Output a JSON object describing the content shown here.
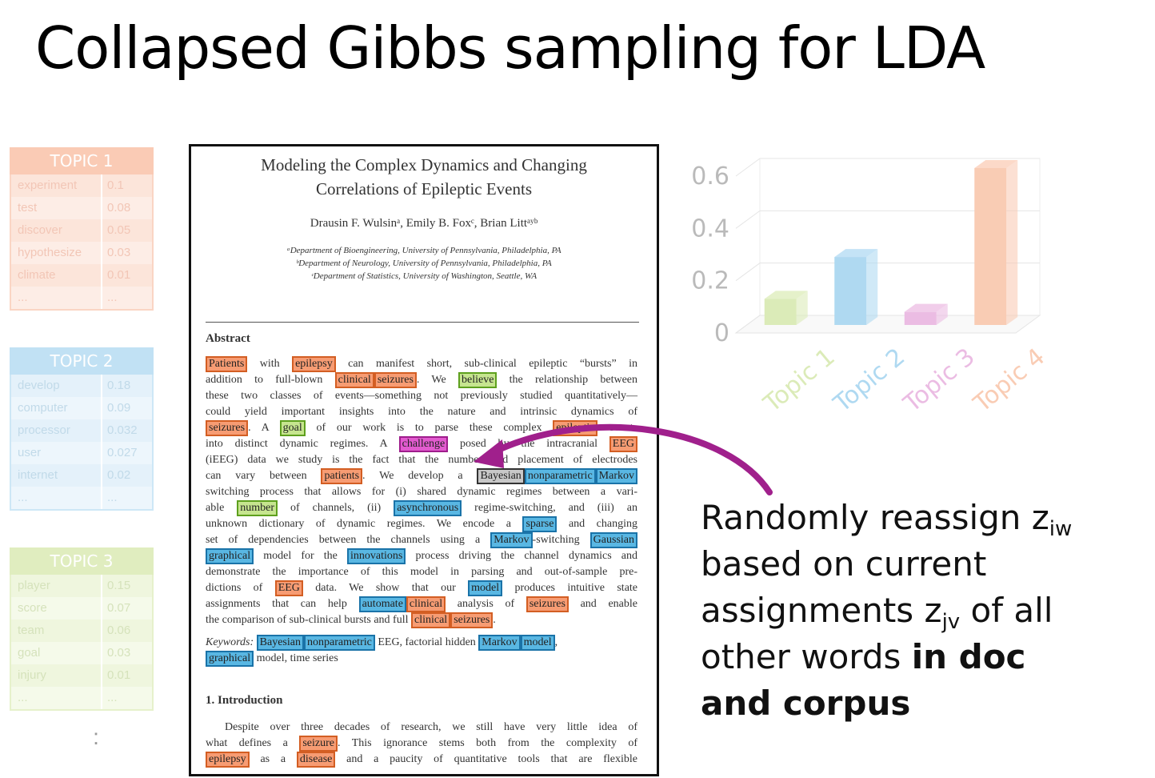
{
  "title": "Collapsed Gibbs sampling for LDA",
  "topics": [
    {
      "name": "TOPIC 1",
      "color": "#f7a27a",
      "rows": [
        {
          "word": "experiment",
          "prob": "0.1"
        },
        {
          "word": "test",
          "prob": "0.08"
        },
        {
          "word": "discover",
          "prob": "0.05"
        },
        {
          "word": "hypothesize",
          "prob": "0.03"
        },
        {
          "word": "climate",
          "prob": "0.01"
        },
        {
          "word": "...",
          "prob": "..."
        }
      ]
    },
    {
      "name": "TOPIC 2",
      "color": "#8fc9ec",
      "rows": [
        {
          "word": "develop",
          "prob": "0.18"
        },
        {
          "word": "computer",
          "prob": "0.09"
        },
        {
          "word": "processor",
          "prob": "0.032"
        },
        {
          "word": "user",
          "prob": "0.027"
        },
        {
          "word": "internet",
          "prob": "0.02"
        },
        {
          "word": "...",
          "prob": "..."
        }
      ]
    },
    {
      "name": "TOPIC 3",
      "color": "#c7df8b",
      "rows": [
        {
          "word": "player",
          "prob": "0.15"
        },
        {
          "word": "score",
          "prob": "0.07"
        },
        {
          "word": "team",
          "prob": "0.06"
        },
        {
          "word": "goal",
          "prob": "0.03"
        },
        {
          "word": "injury",
          "prob": "0.01"
        },
        {
          "word": "...",
          "prob": "..."
        }
      ]
    }
  ],
  "more_topics": ":",
  "paper": {
    "title_line1": "Modeling the Complex Dynamics and Changing",
    "title_line2": "Correlations of Epileptic Events",
    "authors": "Drausin F. Wulsinᵃ, Emily B. Foxᶜ, Brian Littᵃʸᵇ",
    "affiliations": [
      "ᵃDepartment of Bioengineering, University of Pennsylvania, Philadelphia, PA",
      "ᵇDepartment of Neurology, University of Pennsylvania, Philadelphia, PA",
      "ᶜDepartment of Statistics, University of Washington, Seattle, WA"
    ],
    "abstract_heading": "Abstract",
    "abstract_lines": [
      [
        {
          "t": "Patients",
          "h": "o"
        },
        {
          "t": " with "
        },
        {
          "t": "epilepsy",
          "h": "o"
        },
        {
          "t": " can manifest short, sub-clinical epileptic “bursts” in"
        }
      ],
      [
        {
          "t": "addition to full-blown "
        },
        {
          "t": "clinical",
          "h": "o"
        },
        {
          "t": "seizures",
          "h": "o"
        },
        {
          "t": ". We "
        },
        {
          "t": "believe",
          "h": "g"
        },
        {
          "t": " the relationship between"
        }
      ],
      [
        {
          "t": "these two classes of events—something not previously studied quantitatively—"
        }
      ],
      [
        {
          "t": "could yield important insights into the nature and intrinsic dynamics of"
        }
      ],
      [
        {
          "t": "seizures",
          "h": "o"
        },
        {
          "t": ". A "
        },
        {
          "t": "goal",
          "h": "g"
        },
        {
          "t": " of our work is to parse these complex "
        },
        {
          "t": "epileptic",
          "h": "o"
        },
        {
          "t": " events"
        }
      ],
      [
        {
          "t": "into distinct dynamic regimes. A "
        },
        {
          "t": "challenge",
          "h": "m"
        },
        {
          "t": " posed by the intracranial "
        },
        {
          "t": "EEG",
          "h": "o"
        }
      ],
      [
        {
          "t": "(iEEG) data we study is the fact that the number and placement of electrodes"
        }
      ],
      [
        {
          "t": "can vary between "
        },
        {
          "t": "patients",
          "h": "o"
        },
        {
          "t": ". We develop a "
        },
        {
          "t": "Bayesian",
          "h": "gray"
        },
        {
          "t": "nonparametric",
          "h": "b"
        },
        {
          "t": "Markov",
          "h": "b"
        }
      ],
      [
        {
          "t": "switching process that allows for (i) shared dynamic regimes between a vari-"
        }
      ],
      [
        {
          "t": "able "
        },
        {
          "t": "number",
          "h": "g"
        },
        {
          "t": " of channels, (ii) "
        },
        {
          "t": "asynchronous",
          "h": "b"
        },
        {
          "t": " regime-switching, and (iii) an"
        }
      ],
      [
        {
          "t": "unknown dictionary of dynamic regimes. We encode a "
        },
        {
          "t": "sparse",
          "h": "b"
        },
        {
          "t": " and changing"
        }
      ],
      [
        {
          "t": "set of dependencies between the channels using a "
        },
        {
          "t": "Markov",
          "h": "b"
        },
        {
          "t": "-switching "
        },
        {
          "t": "Gaussian",
          "h": "b"
        }
      ],
      [
        {
          "t": "graphical",
          "h": "b"
        },
        {
          "t": " model for the "
        },
        {
          "t": "innovations",
          "h": "b"
        },
        {
          "t": " process driving the channel dynamics and"
        }
      ],
      [
        {
          "t": "demonstrate the importance of this model in parsing and out-of-sample pre-"
        }
      ],
      [
        {
          "t": "dictions of "
        },
        {
          "t": "EEG",
          "h": "o"
        },
        {
          "t": " data. We show that our "
        },
        {
          "t": "model",
          "h": "b"
        },
        {
          "t": " produces intuitive state"
        }
      ],
      [
        {
          "t": "assignments that can help "
        },
        {
          "t": "automate",
          "h": "b"
        },
        {
          "t": "clinical",
          "h": "o"
        },
        {
          "t": " analysis of "
        },
        {
          "t": "seizures",
          "h": "o"
        },
        {
          "t": " and enable"
        }
      ],
      [
        {
          "t": "the comparison of sub-clinical bursts and full "
        },
        {
          "t": "clinical",
          "h": "o"
        },
        {
          "t": "seizures",
          "h": "o"
        },
        {
          "t": "."
        }
      ]
    ],
    "keywords_line1": [
      {
        "t": "Keywords:",
        "k": true
      },
      {
        "t": " "
      },
      {
        "t": "Bayesian",
        "h": "b"
      },
      {
        "t": "nonparametric",
        "h": "b"
      },
      {
        "t": " EEG, factorial hidden "
      },
      {
        "t": "Markov",
        "h": "b"
      },
      {
        "t": "model",
        "h": "b"
      },
      {
        "t": ","
      }
    ],
    "keywords_line2": [
      {
        "t": "graphical",
        "h": "b"
      },
      {
        "t": " model, time series"
      }
    ],
    "section_heading": "1. Introduction",
    "intro_lines": [
      [
        {
          "t": "Despite over three decades of research, we still have very little idea of"
        }
      ],
      [
        {
          "t": "what defines a "
        },
        {
          "t": "seizure",
          "h": "o"
        },
        {
          "t": ". This ignorance stems both from the complexity of"
        }
      ],
      [
        {
          "t": "epilepsy",
          "h": "o"
        },
        {
          "t": " as a "
        },
        {
          "t": "disease",
          "h": "o"
        },
        {
          "t": " and a paucity of quantitative tools that are flexible"
        }
      ]
    ]
  },
  "chart_data": {
    "type": "bar",
    "categories": [
      "Topic 1",
      "Topic 2",
      "Topic 3",
      "Topic 4"
    ],
    "values": [
      0.1,
      0.26,
      0.05,
      0.6
    ],
    "colors": [
      "#b9d873",
      "#62b5e5",
      "#d97bc8",
      "#f59a6c"
    ],
    "yticks": [
      "0",
      "0.2",
      "0.4",
      "0.6"
    ],
    "ylim": [
      0,
      0.6
    ],
    "grid": true,
    "three_d": true
  },
  "caption": {
    "line1": "Randomly reassign z",
    "line1_sub": "iw",
    "line2": "based on current",
    "line3_a": "assignments z",
    "line3_sub": "jv",
    "line3_b": " of all",
    "line4_a": "other words ",
    "line4_bold": "in doc",
    "line5_bold": "and corpus"
  },
  "arrow_color": "#a0208c"
}
